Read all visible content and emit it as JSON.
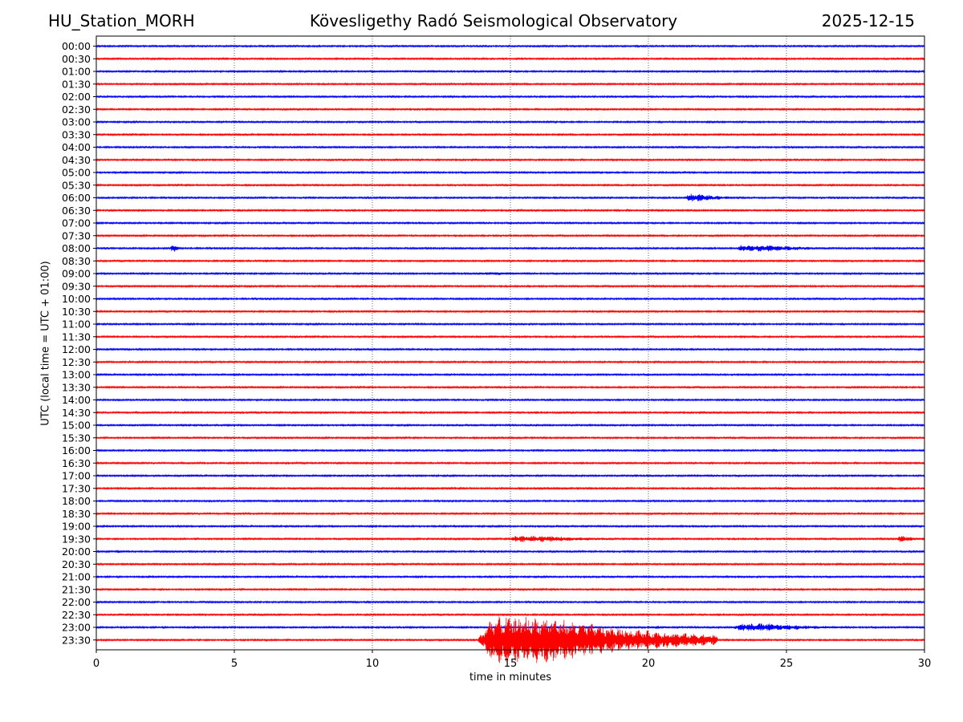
{
  "header": {
    "station": "HU_Station_MORH",
    "title": "Kövesligethy Radó Seismological Observatory",
    "date": "2025-12-15"
  },
  "colors": {
    "blue": "#0000ff",
    "red": "#ff0000",
    "axis": "#000000",
    "grid": "#000000"
  },
  "chart_data": {
    "type": "line",
    "title": "Kövesligethy Radó Seismological Observatory",
    "xlabel": "time in minutes",
    "ylabel": "UTC (local time = UTC + 01:00)",
    "xlim": [
      0,
      30
    ],
    "x_ticks": [
      0,
      5,
      10,
      15,
      20,
      25,
      30
    ],
    "vertical_gridlines_at": [
      5,
      10,
      15,
      20,
      25
    ],
    "series_color_cycle": [
      "blue",
      "red"
    ],
    "rows": [
      "00:00",
      "00:30",
      "01:00",
      "01:30",
      "02:00",
      "02:30",
      "03:00",
      "03:30",
      "04:00",
      "04:30",
      "05:00",
      "05:30",
      "06:00",
      "06:30",
      "07:00",
      "07:30",
      "08:00",
      "08:30",
      "09:00",
      "09:30",
      "10:00",
      "10:30",
      "11:00",
      "11:30",
      "12:00",
      "12:30",
      "13:00",
      "13:30",
      "14:00",
      "14:30",
      "15:00",
      "15:30",
      "16:00",
      "16:30",
      "17:00",
      "17:30",
      "18:00",
      "18:30",
      "19:00",
      "19:30",
      "20:00",
      "20:30",
      "21:00",
      "21:30",
      "22:00",
      "22:30",
      "23:00",
      "23:30"
    ],
    "events": [
      {
        "row": "06:00",
        "start_min": 21.3,
        "end_min": 23.3,
        "amplitude": 5
      },
      {
        "row": "08:00",
        "start_min": 2.7,
        "end_min": 3.0,
        "amplitude": 7
      },
      {
        "row": "08:00",
        "start_min": 23.1,
        "end_min": 27.4,
        "amplitude": 4
      },
      {
        "row": "09:00",
        "start_min": 13.8,
        "end_min": 16.7,
        "amplitude": 2
      },
      {
        "row": "16:00",
        "start_min": 24.4,
        "end_min": 25.5,
        "amplitude": 2
      },
      {
        "row": "19:30",
        "start_min": 14.9,
        "end_min": 19.3,
        "amplitude": 4
      },
      {
        "row": "19:30",
        "start_min": 29.0,
        "end_min": 30.0,
        "amplitude": 4
      },
      {
        "row": "20:00",
        "start_min": 0.6,
        "end_min": 1.8,
        "amplitude": 2
      },
      {
        "row": "23:00",
        "start_min": 20.0,
        "end_min": 21.5,
        "amplitude": 2
      },
      {
        "row": "23:00",
        "start_min": 23.0,
        "end_min": 27.3,
        "amplitude": 5
      },
      {
        "row": "23:30",
        "start_min": 13.8,
        "end_min": 22.5,
        "amplitude": 30
      }
    ]
  }
}
